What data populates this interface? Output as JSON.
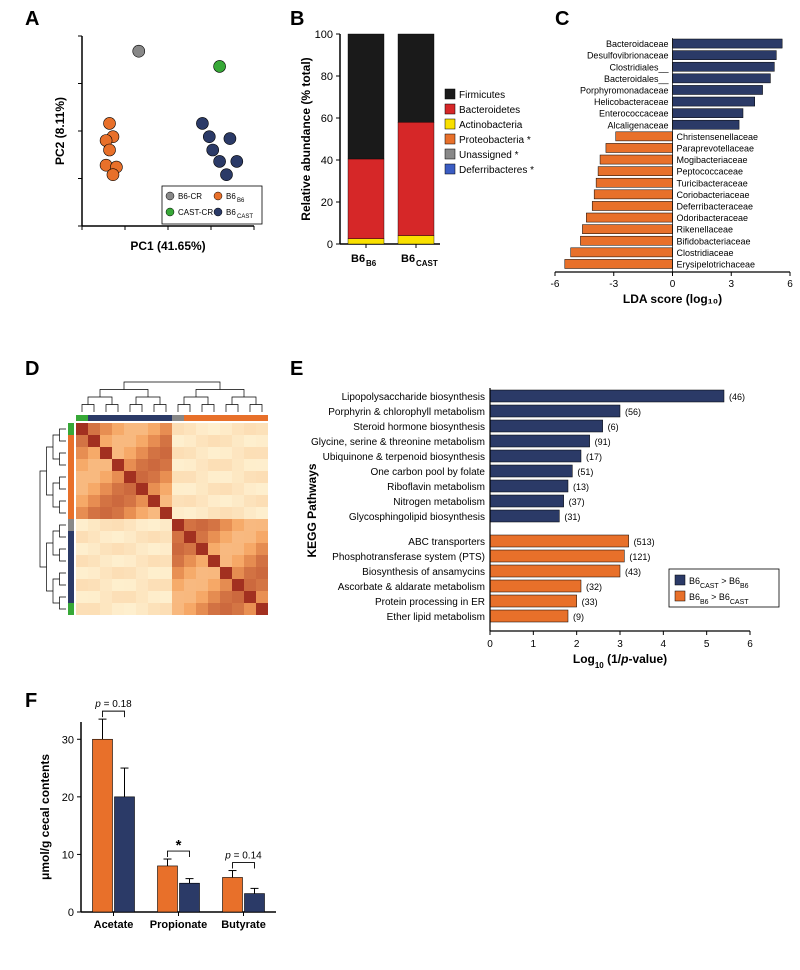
{
  "colors": {
    "navy": "#2b3a67",
    "orange": "#e8702a",
    "yellow": "#f9e000",
    "green": "#37a837",
    "gray": "#888888",
    "blue": "#3a5cc2",
    "red": "#d62728",
    "black": "#1a1a1a",
    "darkred": "#a23020",
    "axis": "#000000",
    "white": "#ffffff",
    "bg": "#ffffff"
  },
  "labels": {
    "A": "A",
    "B": "B",
    "C": "C",
    "D": "D",
    "E": "E",
    "F": "F"
  },
  "panelA": {
    "xlabel": "PC1 (41.65%)",
    "ylabel": "PC2 (8.11%)",
    "legend": [
      {
        "label": "B6-CR",
        "color": "#888888"
      },
      {
        "label": "CAST-CR",
        "color": "#37a837"
      },
      {
        "label": "B6_B6",
        "color": "#e8702a",
        "sub": "B6"
      },
      {
        "label": "B6_CAST",
        "color": "#2b3a67",
        "sub": "CAST"
      }
    ],
    "points": [
      {
        "x": 0.16,
        "y": 0.54,
        "c": "#e8702a"
      },
      {
        "x": 0.18,
        "y": 0.47,
        "c": "#e8702a"
      },
      {
        "x": 0.14,
        "y": 0.45,
        "c": "#e8702a"
      },
      {
        "x": 0.16,
        "y": 0.4,
        "c": "#e8702a"
      },
      {
        "x": 0.14,
        "y": 0.32,
        "c": "#e8702a"
      },
      {
        "x": 0.2,
        "y": 0.31,
        "c": "#e8702a"
      },
      {
        "x": 0.18,
        "y": 0.27,
        "c": "#e8702a"
      },
      {
        "x": 0.33,
        "y": 0.92,
        "c": "#888888"
      },
      {
        "x": 0.8,
        "y": 0.84,
        "c": "#37a837"
      },
      {
        "x": 0.7,
        "y": 0.54,
        "c": "#2b3a67"
      },
      {
        "x": 0.74,
        "y": 0.47,
        "c": "#2b3a67"
      },
      {
        "x": 0.86,
        "y": 0.46,
        "c": "#2b3a67"
      },
      {
        "x": 0.76,
        "y": 0.4,
        "c": "#2b3a67"
      },
      {
        "x": 0.8,
        "y": 0.34,
        "c": "#2b3a67"
      },
      {
        "x": 0.9,
        "y": 0.34,
        "c": "#2b3a67"
      },
      {
        "x": 0.84,
        "y": 0.27,
        "c": "#2b3a67"
      }
    ]
  },
  "panelB": {
    "ylabel": "Relative abundance (% total)",
    "yticks": [
      0,
      20,
      40,
      60,
      80,
      100
    ],
    "categories": [
      "B6_B6",
      "B6_CAST"
    ],
    "legend": [
      {
        "label": "Firmicutes",
        "color": "#1a1a1a"
      },
      {
        "label": "Bacteroidetes",
        "color": "#d62728"
      },
      {
        "label": "Actinobacteria",
        "color": "#f9e000"
      },
      {
        "label": "Proteobacteria *",
        "color": "#e8702a"
      },
      {
        "label": "Unassigned *",
        "color": "#888888"
      },
      {
        "label": "Deferribacteres *",
        "color": "#3a5cc2"
      }
    ],
    "stacks": [
      [
        {
          "v": 2.5,
          "c": "#f9e000"
        },
        {
          "v": 38,
          "c": "#d62728"
        },
        {
          "v": 59.5,
          "c": "#1a1a1a"
        }
      ],
      [
        {
          "v": 4,
          "c": "#f9e000"
        },
        {
          "v": 54,
          "c": "#d62728"
        },
        {
          "v": 42,
          "c": "#1a1a1a"
        }
      ]
    ]
  },
  "panelC": {
    "xlabel": "LDA score (log₁₀)",
    "xticks": [
      -6,
      -3,
      0,
      3,
      6
    ],
    "navy_items": [
      {
        "name": "Bacteroidaceae",
        "v": 5.6
      },
      {
        "name": "Desulfovibrionaceae",
        "v": 5.3
      },
      {
        "name": "Clostridiales__",
        "v": 5.2
      },
      {
        "name": "Bacteroidales__",
        "v": 5.0
      },
      {
        "name": "Porphyromonadaceae",
        "v": 4.6
      },
      {
        "name": "Helicobacteraceae",
        "v": 4.2
      },
      {
        "name": "Enterococcaceae",
        "v": 3.6
      },
      {
        "name": "Alcaligenaceae",
        "v": 3.4
      }
    ],
    "orange_items": [
      {
        "name": "Christensenellaceae",
        "v": -2.9
      },
      {
        "name": "Paraprevotellaceae",
        "v": -3.4
      },
      {
        "name": "Mogibacteriaceae",
        "v": -3.7
      },
      {
        "name": "Peptococcaceae",
        "v": -3.8
      },
      {
        "name": "Turicibacteraceae",
        "v": -3.9
      },
      {
        "name": "Coriobacteriaceae",
        "v": -4.0
      },
      {
        "name": "Deferribacteraceae",
        "v": -4.1
      },
      {
        "name": "Odoribacteraceae",
        "v": -4.4
      },
      {
        "name": "Rikenellaceae",
        "v": -4.6
      },
      {
        "name": "Bifidobacteriaceae",
        "v": -4.7
      },
      {
        "name": "Clostridiaceae",
        "v": -5.2
      },
      {
        "name": "Erysipelotrichaceae",
        "v": -5.5
      }
    ]
  },
  "panelD": {
    "col_groups": [
      "#37a837",
      "#2b3a67",
      "#2b3a67",
      "#2b3a67",
      "#2b3a67",
      "#2b3a67",
      "#2b3a67",
      "#2b3a67",
      "#888888",
      "#e8702a",
      "#e8702a",
      "#e8702a",
      "#e8702a",
      "#e8702a",
      "#e8702a",
      "#e8702a"
    ],
    "row_groups": [
      "#37a837",
      "#e8702a",
      "#e8702a",
      "#e8702a",
      "#e8702a",
      "#e8702a",
      "#e8702a",
      "#e8702a",
      "#888888",
      "#2b3a67",
      "#2b3a67",
      "#2b3a67",
      "#2b3a67",
      "#2b3a67",
      "#2b3a67",
      "#37a837"
    ],
    "heat_colors": {
      "low": "#fff8db",
      "mid": "#f5a15c",
      "high": "#a23020"
    }
  },
  "panelE": {
    "ylabel": "KEGG Pathways",
    "xlabel": "Log₁₀ (1/p-value)",
    "xticks": [
      0,
      1,
      2,
      3,
      4,
      5,
      6
    ],
    "legend": [
      "B6_CAST > B6_B6",
      "B6_B6 > B6_CAST"
    ],
    "navy_bars": [
      {
        "name": "Lipopolysaccharide biosynthesis",
        "v": 5.4,
        "n": "(46)"
      },
      {
        "name": "Porphyrin & chlorophyll metabolism",
        "v": 3.0,
        "n": "(56)"
      },
      {
        "name": "Steroid hormone biosynthesis",
        "v": 2.6,
        "n": "(6)"
      },
      {
        "name": "Glycine, serine & threonine metabolism",
        "v": 2.3,
        "n": "(91)"
      },
      {
        "name": "Ubiquinone & terpenoid biosynthesis",
        "v": 2.1,
        "n": "(17)"
      },
      {
        "name": "One carbon pool by folate",
        "v": 1.9,
        "n": "(51)"
      },
      {
        "name": "Riboflavin metabolism",
        "v": 1.8,
        "n": "(13)"
      },
      {
        "name": "Nitrogen metabolism",
        "v": 1.7,
        "n": "(37)"
      },
      {
        "name": "Glycosphingolipid biosynthesis",
        "v": 1.6,
        "n": "(31)"
      }
    ],
    "orange_bars": [
      {
        "name": "ABC transporters",
        "v": 3.2,
        "n": "(513)"
      },
      {
        "name": "Phosphotransferase system (PTS)",
        "v": 3.1,
        "n": "(121)"
      },
      {
        "name": "Biosynthesis of ansamycins",
        "v": 3.0,
        "n": "(43)"
      },
      {
        "name": "Ascorbate & aldarate metabolism",
        "v": 2.1,
        "n": "(32)"
      },
      {
        "name": "Protein processing in ER",
        "v": 2.0,
        "n": "(33)"
      },
      {
        "name": "Ether lipid metabolism",
        "v": 1.8,
        "n": "(9)"
      }
    ]
  },
  "panelF": {
    "ylabel": "μmol/g cecal contents",
    "yticks": [
      0,
      10,
      20,
      30
    ],
    "categories": [
      "Acetate",
      "Propionate",
      "Butyrate"
    ],
    "bars": [
      {
        "cat": "Acetate",
        "orange": 30,
        "orange_err": 3.5,
        "navy": 20,
        "navy_err": 5,
        "annot": "p = 0.18"
      },
      {
        "cat": "Propionate",
        "orange": 8,
        "orange_err": 1.2,
        "navy": 5,
        "navy_err": 0.8,
        "annot": "*"
      },
      {
        "cat": "Butyrate",
        "orange": 6,
        "orange_err": 1.2,
        "navy": 3.2,
        "navy_err": 0.9,
        "annot": "p = 0.14"
      }
    ]
  }
}
